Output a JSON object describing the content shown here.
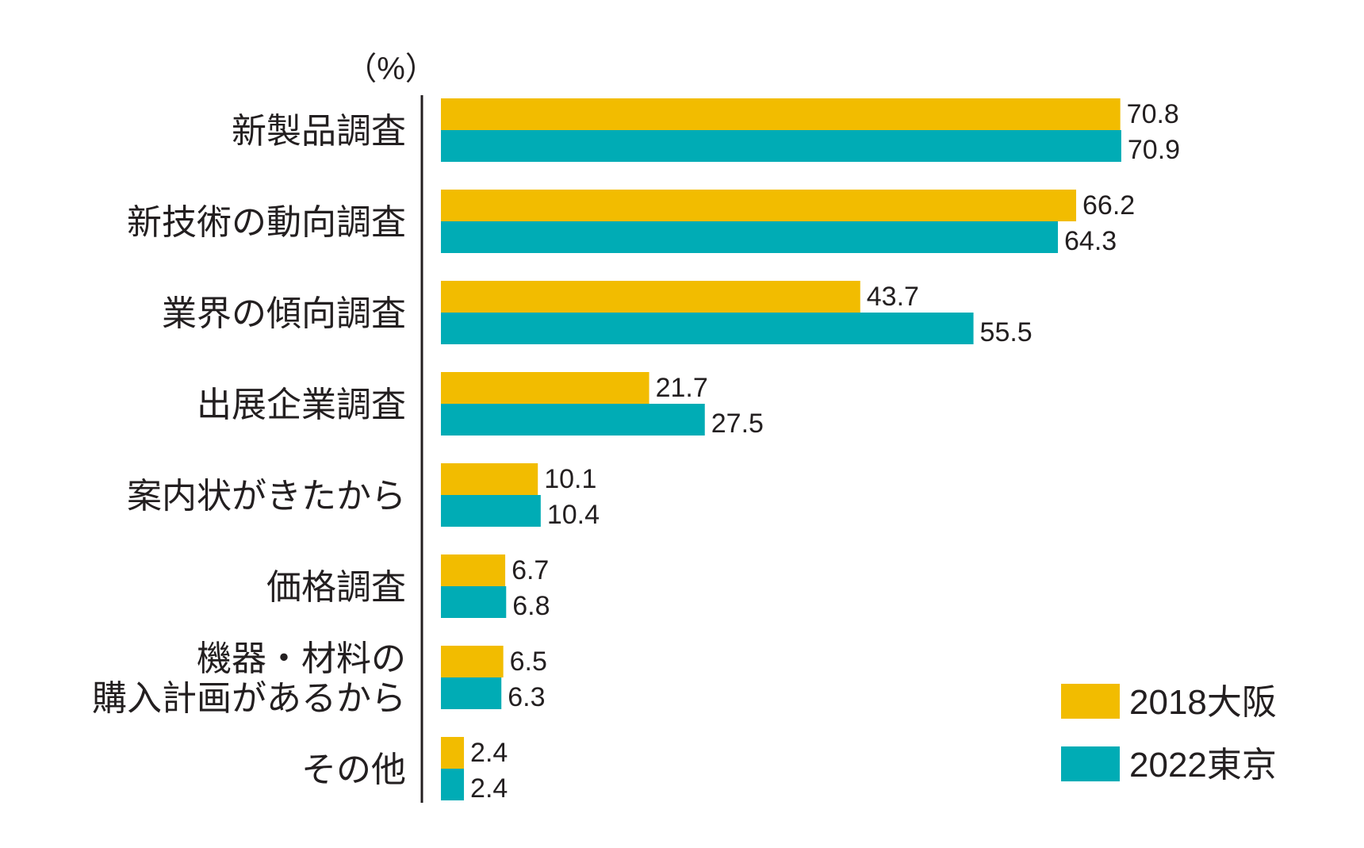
{
  "chart_data": {
    "type": "bar",
    "orientation": "horizontal",
    "unit_label": "（%）",
    "categories": [
      [
        "新製品調査"
      ],
      [
        "新技術の動向調査"
      ],
      [
        "業界の傾向調査"
      ],
      [
        "出展企業調査"
      ],
      [
        "案内状がきたから"
      ],
      [
        "価格調査"
      ],
      [
        "機器・材料の",
        "購入計画があるから"
      ],
      [
        "その他"
      ]
    ],
    "series": [
      {
        "name": "2018大阪",
        "color": "#f2bc00",
        "values": [
          70.8,
          66.2,
          43.7,
          21.7,
          10.1,
          6.7,
          6.5,
          2.4
        ]
      },
      {
        "name": "2022東京",
        "color": "#00acb5",
        "values": [
          70.9,
          64.3,
          55.5,
          27.5,
          10.4,
          6.8,
          6.3,
          2.4
        ]
      }
    ],
    "xlim": [
      0,
      80
    ],
    "grid": false,
    "legend_position": "bottom-right"
  }
}
